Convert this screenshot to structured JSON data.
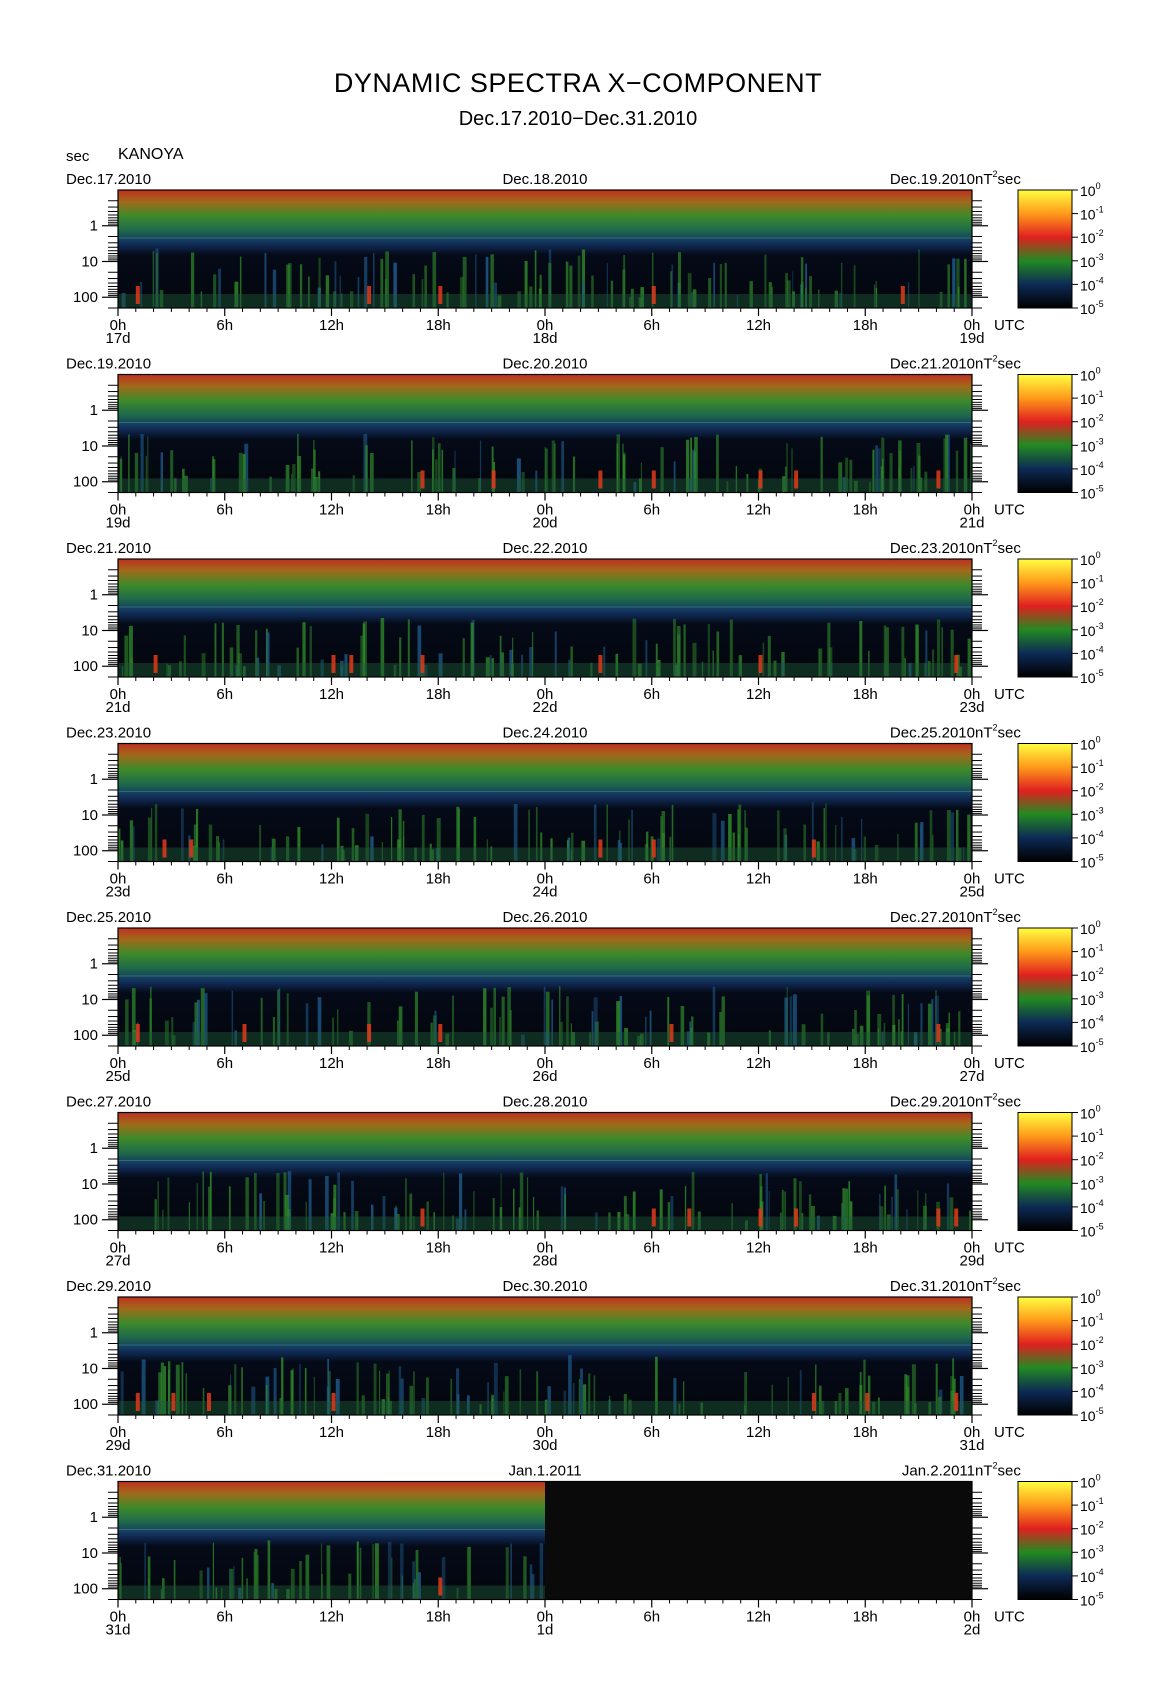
{
  "header": {
    "title": "DYNAMIC SPECTRA X−COMPONENT",
    "subtitle": "Dec.17.2010−Dec.31.2010",
    "y_unit": "sec",
    "station": "KANOYA"
  },
  "chart_data": {
    "type": "heatmap",
    "ylabel": "sec",
    "y_ticks": [
      "1",
      "10",
      "100"
    ],
    "x_ticks": [
      "0h",
      "6h",
      "12h",
      "18h",
      "0h",
      "6h",
      "12h",
      "18h",
      "0h"
    ],
    "x_unit": "UTC",
    "colorbar": {
      "unit_base": "nT",
      "unit_exp": "2",
      "unit_suffix": "sec",
      "tick_base": "10",
      "tick_exponents": [
        "0",
        "-1",
        "-2",
        "-3",
        "-4",
        "-5"
      ],
      "colors": [
        "#ffff40",
        "#ff9a1a",
        "#e02020",
        "#228a22",
        "#0d2a55",
        "#000000"
      ]
    },
    "panels": [
      {
        "start_label": "Dec.17.2010",
        "mid_label": "Dec.18.2010",
        "end_label": "Dec.19.2010",
        "day_labels": [
          "17d",
          "18d",
          "19d"
        ],
        "no_data_from_hour": null,
        "hot_hours": [
          1,
          14,
          18,
          30,
          44
        ]
      },
      {
        "start_label": "Dec.19.2010",
        "mid_label": "Dec.20.2010",
        "end_label": "Dec.21.2010",
        "day_labels": [
          "19d",
          "20d",
          "21d"
        ],
        "no_data_from_hour": null,
        "hot_hours": [
          17,
          21,
          27,
          30,
          36,
          38,
          46
        ]
      },
      {
        "start_label": "Dec.21.2010",
        "mid_label": "Dec.22.2010",
        "end_label": "Dec.23.2010",
        "day_labels": [
          "21d",
          "22d",
          "23d"
        ],
        "no_data_from_hour": null,
        "hot_hours": [
          2,
          12,
          13,
          17,
          27,
          36,
          47
        ]
      },
      {
        "start_label": "Dec.23.2010",
        "mid_label": "Dec.24.2010",
        "end_label": "Dec.25.2010",
        "day_labels": [
          "23d",
          "24d",
          "25d"
        ],
        "no_data_from_hour": null,
        "hot_hours": [
          2.5,
          4,
          27,
          30,
          39
        ]
      },
      {
        "start_label": "Dec.25.2010",
        "mid_label": "Dec.26.2010",
        "end_label": "Dec.27.2010",
        "day_labels": [
          "25d",
          "26d",
          "27d"
        ],
        "no_data_from_hour": null,
        "hot_hours": [
          1,
          7,
          14,
          18,
          31,
          46
        ]
      },
      {
        "start_label": "Dec.27.2010",
        "mid_label": "Dec.28.2010",
        "end_label": "Dec.29.2010",
        "day_labels": [
          "27d",
          "28d",
          "29d"
        ],
        "no_data_from_hour": null,
        "hot_hours": [
          17,
          30,
          32,
          36,
          38,
          46,
          47
        ]
      },
      {
        "start_label": "Dec.29.2010",
        "mid_label": "Dec.30.2010",
        "end_label": "Dec.31.2010",
        "day_labels": [
          "29d",
          "30d",
          "31d"
        ],
        "no_data_from_hour": null,
        "hot_hours": [
          1,
          3,
          5,
          12,
          39,
          42,
          47
        ]
      },
      {
        "start_label": "Dec.31.2010",
        "mid_label": "Jan.1.2011",
        "end_label": "Jan.2.2011",
        "day_labels": [
          "31d",
          "1d",
          "2d"
        ],
        "no_data_from_hour": 24,
        "hot_hours": [
          18
        ]
      }
    ]
  }
}
